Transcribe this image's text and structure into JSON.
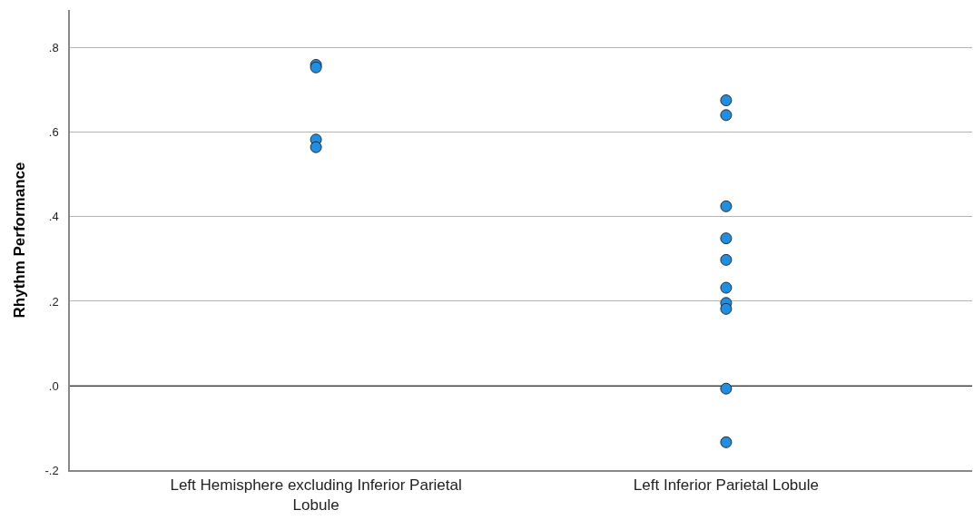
{
  "chart_data": {
    "type": "scatter",
    "ylabel": "Rhythm Performance",
    "categories": [
      "Left Hemisphere excluding Inferior Parietal Lobule",
      "Left Inferior Parietal Lobule"
    ],
    "series": [
      {
        "color": "#1e8fe3",
        "x": [
          "Left Hemisphere excluding Inferior Parietal Lobule",
          "Left Hemisphere excluding Inferior Parietal Lobule",
          "Left Hemisphere excluding Inferior Parietal Lobule",
          "Left Hemisphere excluding Inferior Parietal Lobule",
          "Left Inferior Parietal Lobule",
          "Left Inferior Parietal Lobule",
          "Left Inferior Parietal Lobule",
          "Left Inferior Parietal Lobule",
          "Left Inferior Parietal Lobule",
          "Left Inferior Parietal Lobule",
          "Left Inferior Parietal Lobule",
          "Left Inferior Parietal Lobule",
          "Left Inferior Parietal Lobule",
          "Left Inferior Parietal Lobule"
        ],
        "values": [
          0.76,
          0.754,
          0.583,
          0.565,
          0.676,
          0.641,
          0.425,
          0.349,
          0.298,
          0.232,
          0.196,
          0.182,
          -0.007,
          -0.134
        ]
      }
    ],
    "ylim": [
      -0.2,
      0.89
    ],
    "yticks": [
      {
        "value": -0.2,
        "label": "-.2"
      },
      {
        "value": 0,
        "label": ".0"
      },
      {
        "value": 0.2,
        "label": ".2"
      },
      {
        "value": 0.4,
        "label": ".4"
      },
      {
        "value": 0.6,
        "label": ".6"
      },
      {
        "value": 0.8,
        "label": ".8"
      }
    ],
    "grid": "y",
    "marker": "circle",
    "ref_lines": [
      {
        "axis": "y",
        "value": 0,
        "color": "#333333",
        "line_style": "solid"
      }
    ]
  }
}
